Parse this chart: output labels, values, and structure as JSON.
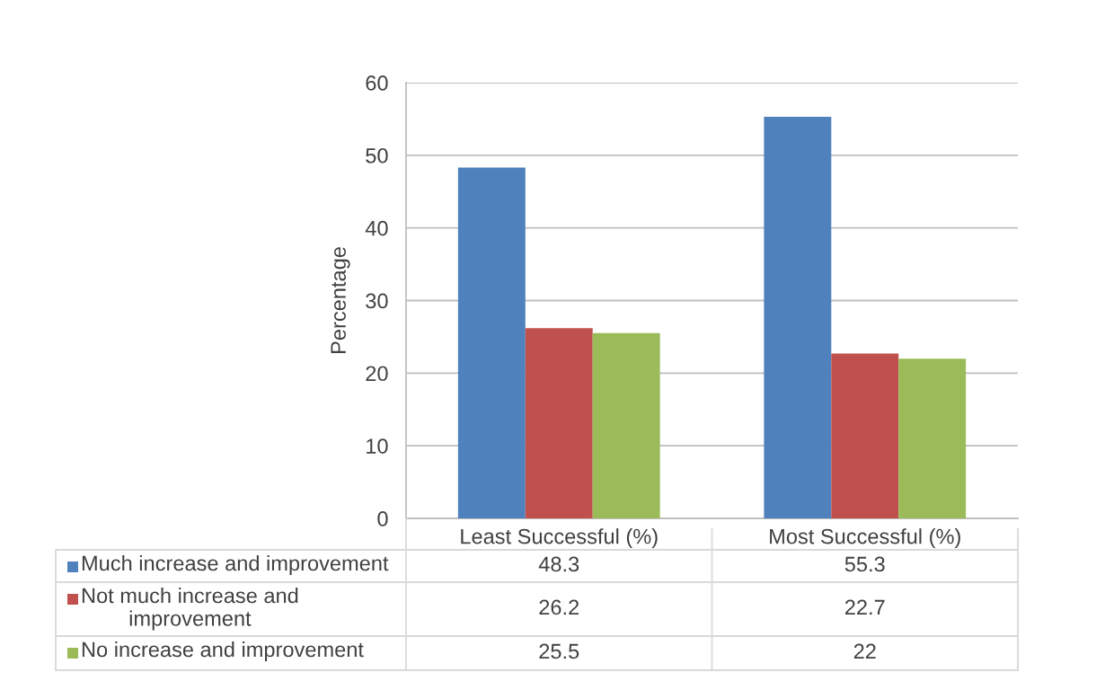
{
  "chart_data": {
    "type": "bar",
    "ylabel": "Percentage",
    "categories": [
      "Least Successful (%)",
      "Most Successful (%)"
    ],
    "series": [
      {
        "name": "Much increase and improvement",
        "color": "#4f81bd",
        "values": [
          48.3,
          55.3
        ]
      },
      {
        "name": "Not much increase and improvement",
        "color": "#c0504d",
        "values": [
          26.2,
          22.7
        ]
      },
      {
        "name": "No increase and improvement",
        "color": "#9bbb59",
        "values": [
          25.5,
          22
        ]
      }
    ],
    "ylim": [
      0,
      60
    ],
    "yticks": [
      0,
      10,
      20,
      30,
      40,
      50,
      60
    ],
    "grid": "y",
    "data_labels": true,
    "legend": "bottom left"
  }
}
